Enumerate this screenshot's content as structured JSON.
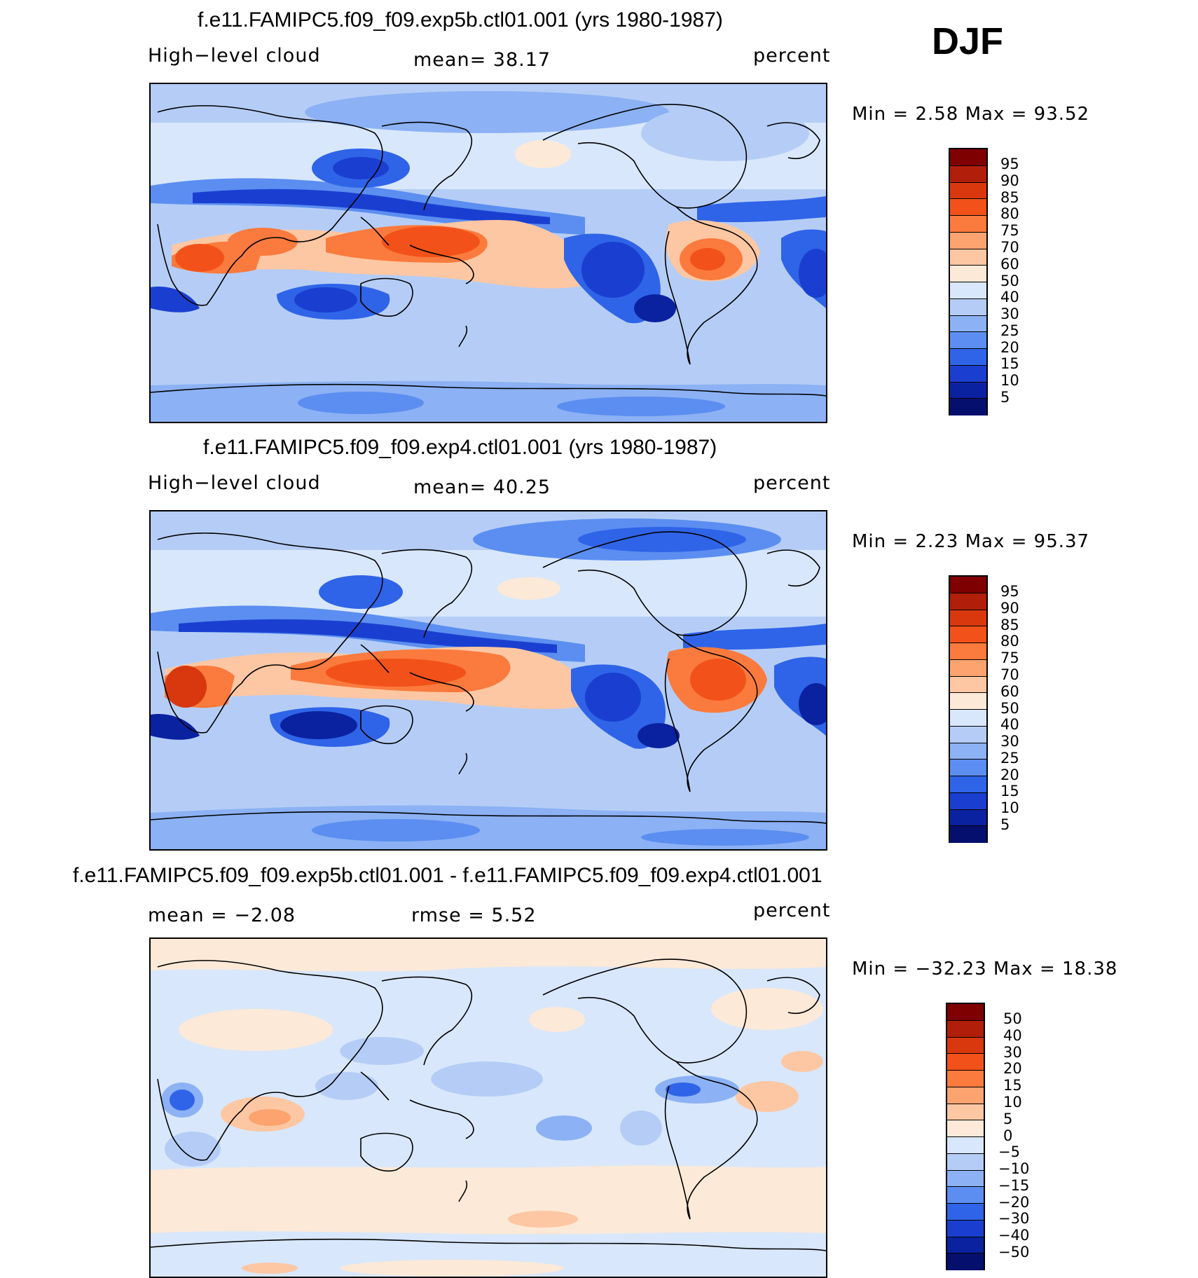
{
  "season": "DJF",
  "panels": [
    {
      "title": "f.e11.FAMIPC5.f09_f09.exp5b.ctl01.001 (yrs 1980-1987)",
      "variable": "High−level cloud",
      "stat": "mean=   38.17",
      "units": "percent",
      "minmax": "Min =    2.58 Max =   93.52",
      "colorbar": {
        "labels": [
          "95",
          "90",
          "85",
          "80",
          "75",
          "70",
          "60",
          "50",
          "40",
          "30",
          "25",
          "20",
          "15",
          "10",
          "5"
        ],
        "colors": [
          "#7f0000",
          "#b11f0a",
          "#d9380f",
          "#f25219",
          "#fb7a3d",
          "#fca36f",
          "#fdc7a3",
          "#fde9d8",
          "#d8e7fb",
          "#b5cdf6",
          "#8cb1f4",
          "#5b8ef0",
          "#2f64e8",
          "#1a3fd0",
          "#0a22a0",
          "#050f6e"
        ]
      }
    },
    {
      "title": "f.e11.FAMIPC5.f09_f09.exp4.ctl01.001 (yrs 1980-1987)",
      "variable": "High−level cloud",
      "stat": "mean=   40.25",
      "units": "percent",
      "minmax": "Min =    2.23 Max =   95.37",
      "colorbar": {
        "labels": [
          "95",
          "90",
          "85",
          "80",
          "75",
          "70",
          "60",
          "50",
          "40",
          "30",
          "25",
          "20",
          "15",
          "10",
          "5"
        ],
        "colors": [
          "#7f0000",
          "#b11f0a",
          "#d9380f",
          "#f25219",
          "#fb7a3d",
          "#fca36f",
          "#fdc7a3",
          "#fde9d8",
          "#d8e7fb",
          "#b5cdf6",
          "#8cb1f4",
          "#5b8ef0",
          "#2f64e8",
          "#1a3fd0",
          "#0a22a0",
          "#050f6e"
        ]
      }
    },
    {
      "title": "f.e11.FAMIPC5.f09_f09.exp5b.ctl01.001 - f.e11.FAMIPC5.f09_f09.exp4.ctl01.001",
      "variable": "mean =   −2.08",
      "stat": "rmse =     5.52",
      "units": "percent",
      "minmax": "Min = −32.23 Max =   18.38",
      "colorbar": {
        "labels": [
          "50",
          "40",
          "30",
          "20",
          "15",
          "10",
          "5",
          "0",
          "−5",
          "−10",
          "−15",
          "−20",
          "−30",
          "−40",
          "−50"
        ],
        "colors": [
          "#7f0000",
          "#b11f0a",
          "#d9380f",
          "#f25219",
          "#fb7a3d",
          "#fca36f",
          "#fdc7a3",
          "#fde9d8",
          "#d8e7fb",
          "#b5cdf6",
          "#8cb1f4",
          "#5b8ef0",
          "#2f64e8",
          "#1a3fd0",
          "#0a22a0",
          "#050f6e"
        ]
      }
    }
  ]
}
